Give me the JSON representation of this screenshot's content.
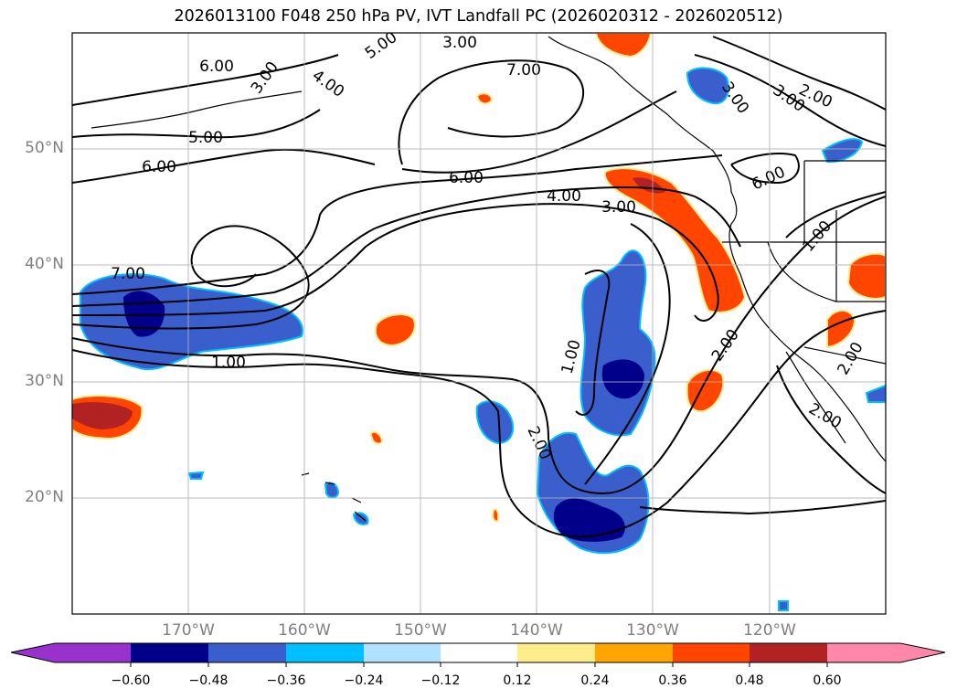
{
  "title": "2026013100 F048 250 hPa PV, IVT Landfall PC (2026020312 - 2026020512)",
  "map": {
    "lat_labels": [
      "50°N",
      "40°N",
      "30°N",
      "20°N"
    ],
    "lon_labels": [
      "170°W",
      "160°W",
      "150°W",
      "140°W",
      "130°W",
      "120°W"
    ],
    "contour_labels": [
      "6.00",
      "3.00",
      "7.00",
      "6.00",
      "4.00",
      "3.00",
      "5.00",
      "6.00",
      "7.00",
      "1.00",
      "1.00",
      "2.00",
      "2.00",
      "2.00",
      "3.00",
      "3.00",
      "2.00",
      "6.00",
      "1.00",
      "3.00",
      "4.00",
      "5.00",
      "2.00"
    ],
    "contour_line_color": "#000000",
    "gridlines": true,
    "coastlines": true
  },
  "colorbar": {
    "tick_labels": [
      "−0.60",
      "−0.48",
      "−0.36",
      "−0.24",
      "−0.12",
      "0.12",
      "0.24",
      "0.36",
      "0.48",
      "0.60"
    ],
    "colors": [
      "#9932cc",
      "#00008b",
      "#3a5fcd",
      "#00bfff",
      "#b0e2ff",
      "#ffffff",
      "#ffec8b",
      "#ffa500",
      "#ff4500",
      "#b22222",
      "#ff88aa"
    ],
    "extend": "both"
  }
}
